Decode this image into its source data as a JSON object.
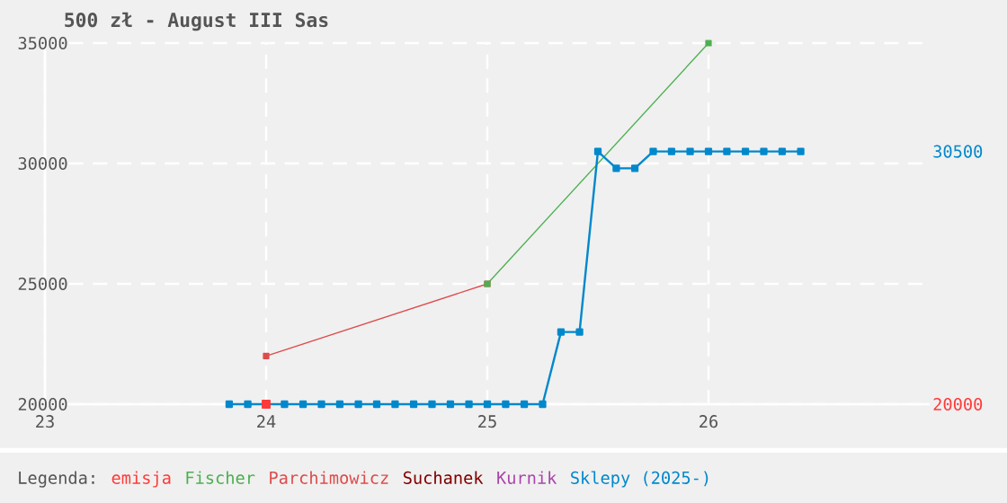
{
  "chart_data": {
    "type": "line",
    "title": "500 zł - August III Sas",
    "legend_title": "Legenda:",
    "xlim": [
      23,
      27
    ],
    "ylim": [
      20000,
      35000
    ],
    "xticks": [
      23,
      24,
      25,
      26
    ],
    "yticks": [
      20000,
      25000,
      30000,
      35000
    ],
    "grid": true,
    "legend": "bottom",
    "marker": "square",
    "line_style": "solid",
    "series": [
      {
        "name": "emisja",
        "color": "#ff3a3a",
        "x": [
          24
        ],
        "values": [
          20000
        ]
      },
      {
        "name": "Fischer",
        "color": "#4caf50",
        "x": [
          25,
          26
        ],
        "values": [
          25000,
          35000
        ]
      },
      {
        "name": "Parchimowicz",
        "color": "#dd4b4b",
        "x": [
          24,
          25
        ],
        "values": [
          22000,
          25000
        ]
      },
      {
        "name": "Suchanek",
        "color": "#800000"
      },
      {
        "name": "Kurnik",
        "color": "#aa44aa"
      },
      {
        "name": "Sklepy (2025-)",
        "color": "#0088cc",
        "x": [
          23.833,
          23.917,
          24.0,
          24.083,
          24.167,
          24.25,
          24.333,
          24.417,
          24.5,
          24.583,
          24.667,
          24.75,
          24.833,
          24.917,
          25.0,
          25.083,
          25.167,
          25.25,
          25.333,
          25.417,
          25.5,
          25.583,
          25.667,
          25.75,
          25.833,
          25.917,
          26.0,
          26.083,
          26.167,
          26.25,
          26.333,
          26.417
        ],
        "values": [
          20000,
          20000,
          20000,
          20000,
          20000,
          20000,
          20000,
          20000,
          20000,
          20000,
          20000,
          20000,
          20000,
          20000,
          20000,
          20000,
          20000,
          20000,
          23000,
          23000,
          30500,
          29800,
          29800,
          30500,
          30500,
          30500,
          30500,
          30500,
          30500,
          30500,
          30500,
          30500
        ]
      }
    ],
    "y2lim": [
      20000,
      35000
    ],
    "y2ticks": [
      30500,
      20000
    ]
  }
}
